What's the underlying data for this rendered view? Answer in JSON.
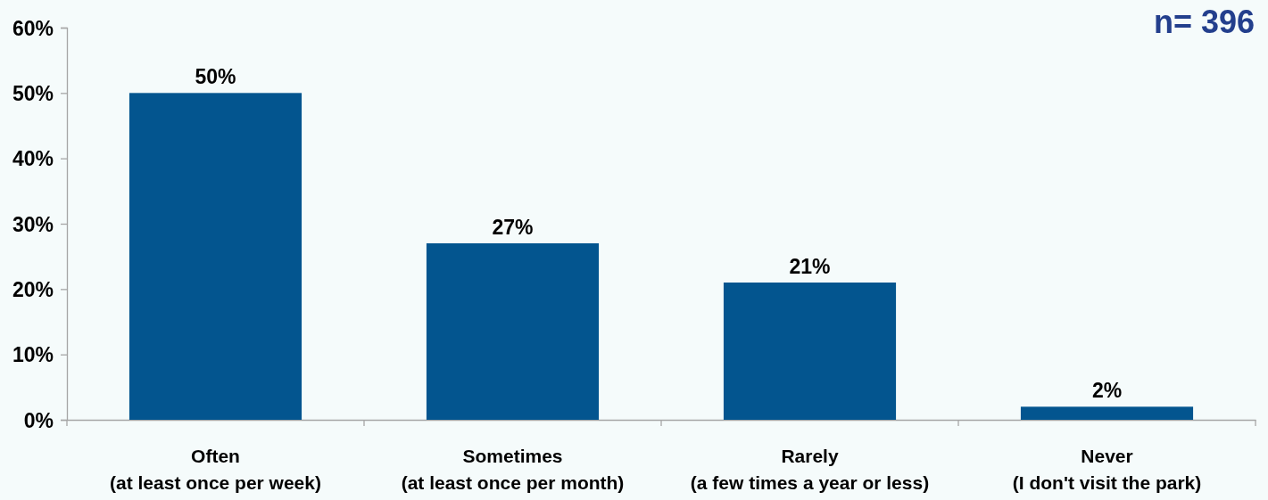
{
  "chart_data": {
    "type": "bar",
    "categories": [
      "Often\n(at least once per week)",
      "Sometimes\n(at least once per month)",
      "Rarely\n(a few times a year or less)",
      "Never\n(I don't visit the park)"
    ],
    "values": [
      50,
      27,
      21,
      2
    ],
    "color": "#03558f",
    "ylim": [
      0,
      60
    ],
    "yticks": [
      {
        "value": 0,
        "label": "0%"
      },
      {
        "value": 10,
        "label": "10%"
      },
      {
        "value": 20,
        "label": "20%"
      },
      {
        "value": 30,
        "label": "30%"
      },
      {
        "value": 40,
        "label": "40%"
      },
      {
        "value": 50,
        "label": "50%"
      },
      {
        "value": 60,
        "label": "60%"
      }
    ],
    "value_labels": [
      "50%",
      "27%",
      "21%",
      "2%"
    ],
    "annotations": [
      "n= 396"
    ]
  }
}
